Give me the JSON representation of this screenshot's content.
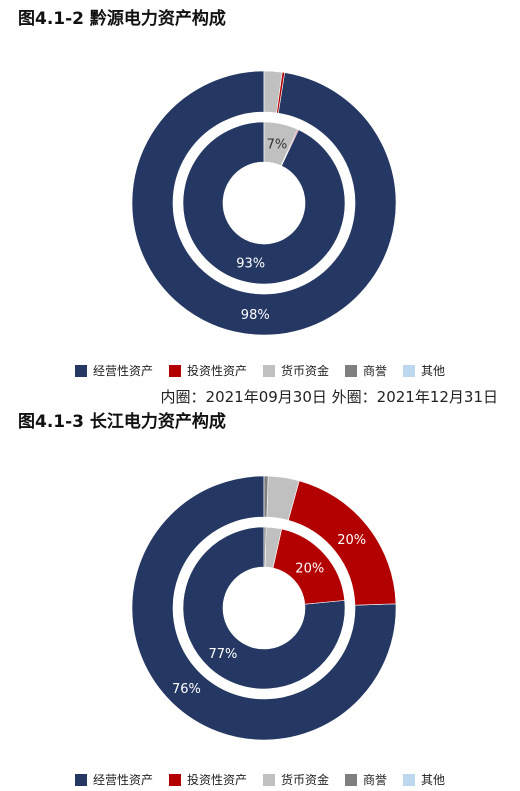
{
  "chart_data": [
    {
      "type": "pie",
      "title": "图4.1-2 黔源电力资产构成",
      "rings": [
        "inner",
        "outer"
      ],
      "categories": [
        "经营性资产",
        "投资性资产",
        "货币资金",
        "商誉",
        "其他"
      ],
      "series": [
        {
          "ring": "inner",
          "values": [
            93.0,
            0.2,
            6.8,
            0.0,
            0.0
          ],
          "labels": [
            "93%",
            "",
            "7%",
            "",
            ""
          ]
        },
        {
          "ring": "outer",
          "values": [
            97.5,
            0.3,
            2.2,
            0.0,
            0.0
          ],
          "labels": [
            "98%",
            "",
            "",
            "",
            ""
          ]
        }
      ],
      "note": "内圈：2021年09月30日 外圈：2021年12月31日",
      "legend_position": "bottom"
    },
    {
      "type": "pie",
      "title": "图4.1-3 长江电力资产构成",
      "rings": [
        "inner",
        "outer"
      ],
      "categories": [
        "经营性资产",
        "投资性资产",
        "货币资金",
        "商誉",
        "其他"
      ],
      "series": [
        {
          "ring": "inner",
          "values": [
            76.5,
            20.0,
            3.1,
            0.4,
            0.0
          ],
          "labels": [
            "77%",
            "20%",
            "",
            "",
            ""
          ]
        },
        {
          "ring": "outer",
          "values": [
            75.5,
            20.2,
            3.8,
            0.5,
            0.0
          ],
          "labels": [
            "76%",
            "20%",
            "",
            "",
            ""
          ]
        }
      ],
      "legend_position": "bottom"
    }
  ],
  "colors": [
    "#253864",
    "#b30000",
    "#c0c0c0",
    "#7f7f7f",
    "#bdd7ee"
  ]
}
